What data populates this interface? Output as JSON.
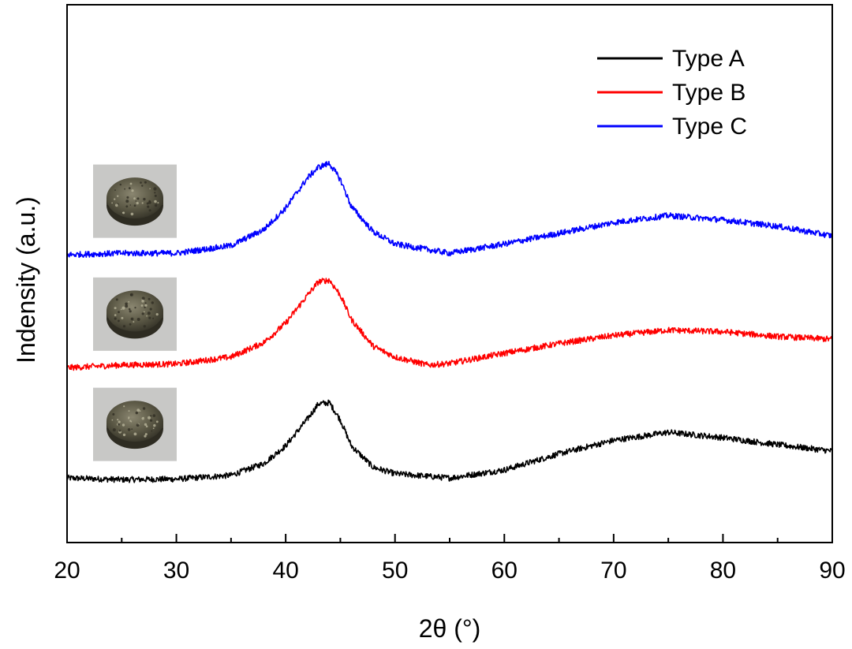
{
  "chart_data": {
    "type": "line",
    "title": "",
    "xlabel": "2θ (°)",
    "ylabel": "Indensity (a.u.)",
    "xlim": [
      20,
      90
    ],
    "ylim": [
      0,
      1
    ],
    "x_ticks": [
      20,
      30,
      40,
      50,
      60,
      70,
      80,
      90
    ],
    "y_ticks": [],
    "grid": false,
    "legend": "top-right",
    "series": [
      {
        "name": "Type A",
        "color": "#000000",
        "points": [
          [
            20,
            0.12
          ],
          [
            25,
            0.117
          ],
          [
            30,
            0.118
          ],
          [
            35,
            0.125
          ],
          [
            38,
            0.147
          ],
          [
            40,
            0.18
          ],
          [
            42,
            0.23
          ],
          [
            43,
            0.258
          ],
          [
            44,
            0.26
          ],
          [
            45,
            0.228
          ],
          [
            46,
            0.18
          ],
          [
            48,
            0.14
          ],
          [
            50,
            0.128
          ],
          [
            55,
            0.12
          ],
          [
            60,
            0.135
          ],
          [
            65,
            0.165
          ],
          [
            70,
            0.19
          ],
          [
            75,
            0.205
          ],
          [
            80,
            0.195
          ],
          [
            85,
            0.182
          ],
          [
            90,
            0.17
          ]
        ]
      },
      {
        "name": "Type B",
        "color": "#ff0000",
        "points": [
          [
            20,
            0.325
          ],
          [
            25,
            0.33
          ],
          [
            30,
            0.332
          ],
          [
            35,
            0.345
          ],
          [
            38,
            0.372
          ],
          [
            40,
            0.408
          ],
          [
            42,
            0.46
          ],
          [
            43,
            0.485
          ],
          [
            44,
            0.488
          ],
          [
            45,
            0.46
          ],
          [
            46,
            0.415
          ],
          [
            48,
            0.365
          ],
          [
            50,
            0.345
          ],
          [
            53,
            0.33
          ],
          [
            55,
            0.333
          ],
          [
            60,
            0.352
          ],
          [
            65,
            0.37
          ],
          [
            70,
            0.385
          ],
          [
            75,
            0.395
          ],
          [
            80,
            0.392
          ],
          [
            85,
            0.383
          ],
          [
            90,
            0.378
          ]
        ]
      },
      {
        "name": "Type C",
        "color": "#0000ff",
        "points": [
          [
            20,
            0.535
          ],
          [
            25,
            0.538
          ],
          [
            30,
            0.538
          ],
          [
            35,
            0.552
          ],
          [
            38,
            0.582
          ],
          [
            40,
            0.622
          ],
          [
            42,
            0.678
          ],
          [
            43,
            0.698
          ],
          [
            44,
            0.705
          ],
          [
            45,
            0.675
          ],
          [
            46,
            0.625
          ],
          [
            48,
            0.578
          ],
          [
            50,
            0.555
          ],
          [
            55,
            0.538
          ],
          [
            60,
            0.555
          ],
          [
            65,
            0.575
          ],
          [
            70,
            0.595
          ],
          [
            75,
            0.608
          ],
          [
            80,
            0.6
          ],
          [
            85,
            0.588
          ],
          [
            90,
            0.57
          ]
        ]
      }
    ],
    "insets": [
      {
        "name": "type-c-sample-photo",
        "series": "Type C"
      },
      {
        "name": "type-b-sample-photo",
        "series": "Type B"
      },
      {
        "name": "type-a-sample-photo",
        "series": "Type A"
      }
    ]
  }
}
